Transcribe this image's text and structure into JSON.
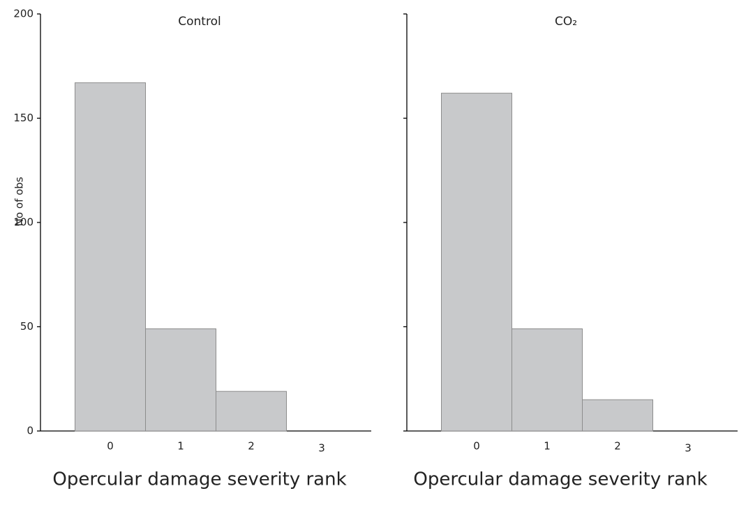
{
  "chart_data": [
    {
      "type": "bar",
      "title": "Control",
      "y_label": "No of obs",
      "x_label": "Opercular damage severity rank",
      "categories": [
        "0",
        "1",
        "2",
        "3"
      ],
      "values": [
        167,
        49,
        19,
        0
      ],
      "color": "#c8c9cb",
      "ylim": [
        0,
        200
      ],
      "yticks": [
        0,
        50,
        100,
        150,
        200
      ],
      "show_tick_labels": true
    },
    {
      "type": "bar",
      "title": "CO₂",
      "x_label": "Opercular damage severity rank",
      "categories": [
        "0",
        "1",
        "2",
        "3"
      ],
      "values": [
        162,
        49,
        15,
        0
      ],
      "color": "#c8c9cb",
      "ylim": [
        0,
        200
      ],
      "yticks": [
        0,
        50,
        100,
        150,
        200
      ],
      "show_tick_labels": false
    }
  ]
}
